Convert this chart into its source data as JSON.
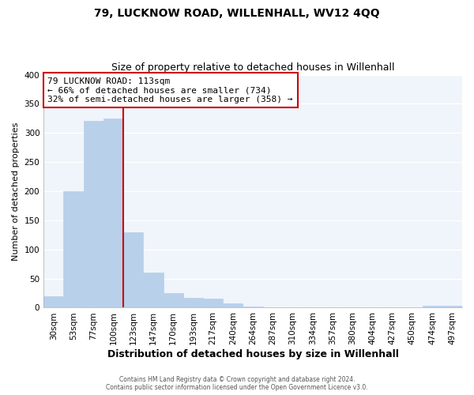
{
  "title": "79, LUCKNOW ROAD, WILLENHALL, WV12 4QQ",
  "subtitle": "Size of property relative to detached houses in Willenhall",
  "xlabel": "Distribution of detached houses by size in Willenhall",
  "ylabel": "Number of detached properties",
  "bar_labels": [
    "30sqm",
    "53sqm",
    "77sqm",
    "100sqm",
    "123sqm",
    "147sqm",
    "170sqm",
    "193sqm",
    "217sqm",
    "240sqm",
    "264sqm",
    "287sqm",
    "310sqm",
    "334sqm",
    "357sqm",
    "380sqm",
    "404sqm",
    "427sqm",
    "450sqm",
    "474sqm",
    "497sqm"
  ],
  "bar_values": [
    20,
    200,
    321,
    325,
    129,
    60,
    25,
    17,
    15,
    7,
    2,
    0,
    0,
    0,
    0,
    0,
    0,
    0,
    0,
    3,
    3
  ],
  "bar_color": "#b8d0ea",
  "bar_edge_color": "#b8d0ea",
  "vline_x": 3.5,
  "vline_color": "#cc0000",
  "annotation_line1": "79 LUCKNOW ROAD: 113sqm",
  "annotation_line2": "← 66% of detached houses are smaller (734)",
  "annotation_line3": "32% of semi-detached houses are larger (358) →",
  "annotation_box_color": "#ffffff",
  "annotation_box_edge": "#cc0000",
  "ylim": [
    0,
    400
  ],
  "yticks": [
    0,
    50,
    100,
    150,
    200,
    250,
    300,
    350,
    400
  ],
  "footer1": "Contains HM Land Registry data © Crown copyright and database right 2024.",
  "footer2": "Contains public sector information licensed under the Open Government Licence v3.0.",
  "background_color": "#ffffff",
  "plot_bg_color": "#f0f4fb",
  "grid_color": "#ffffff"
}
